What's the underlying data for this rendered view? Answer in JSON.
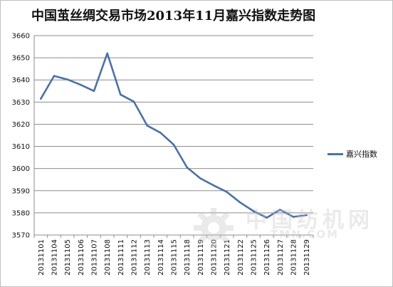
{
  "chart_data": {
    "type": "line",
    "title": "中国茧丝绸交易市场2013年11月嘉兴指数走势图",
    "categories": [
      "20131101",
      "20131104",
      "20131105",
      "20131106",
      "20131107",
      "20131108",
      "20131111",
      "20131112",
      "20131113",
      "20131114",
      "20131115",
      "20131118",
      "20131119",
      "20131120",
      "20131121",
      "20131122",
      "20131125",
      "20131126",
      "20131127",
      "20131128",
      "20131129"
    ],
    "series": [
      {
        "name": "嘉兴指数",
        "color": "#4a72a6",
        "values": [
          3631.5,
          3641.8,
          3640.2,
          3637.8,
          3635.0,
          3652.0,
          3633.4,
          3630.2,
          3619.4,
          3616.2,
          3610.8,
          3600.5,
          3595.6,
          3592.4,
          3589.4,
          3584.7,
          3580.8,
          3577.8,
          3581.4,
          3578.2,
          3579.0
        ]
      }
    ],
    "ylim": [
      3570,
      3660
    ],
    "yticks": [
      3570,
      3580,
      3590,
      3600,
      3610,
      3620,
      3630,
      3640,
      3650,
      3660
    ],
    "grid": true,
    "legend": "right"
  },
  "watermark": {
    "cn": "中国纺机网",
    "en": "TMN.COM"
  }
}
